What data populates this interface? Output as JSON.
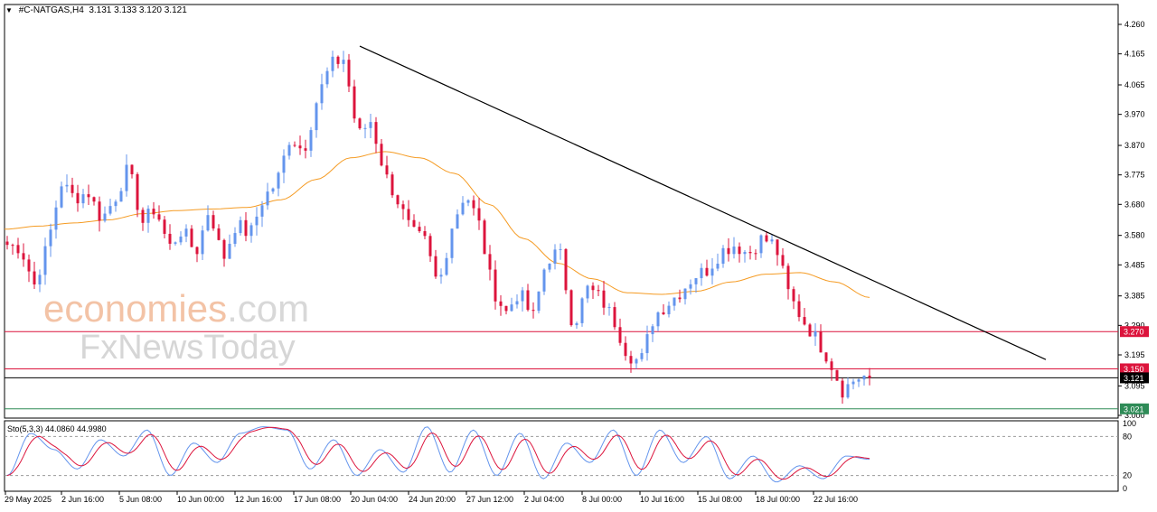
{
  "header": {
    "symbol": "#C-NATGAS,H4",
    "ohlc": "3.131 3.133 3.120 3.121"
  },
  "watermark": {
    "line1_main": "economies",
    "line1_suffix": ".com",
    "line2": "FxNewsToday"
  },
  "indicator": {
    "label": "Sto(5,3,3) 44.0860 44.9980",
    "levels": [
      80,
      20
    ],
    "axis_ticks": [
      "100",
      "80",
      "20",
      "0"
    ]
  },
  "price_axis": {
    "ticks": [
      "4.260",
      "4.165",
      "4.065",
      "3.970",
      "3.870",
      "3.775",
      "3.680",
      "3.580",
      "3.485",
      "3.385",
      "3.290",
      "3.195",
      "3.095",
      "3.000"
    ]
  },
  "hlines": [
    {
      "label": "3.270",
      "value": 3.27,
      "color": "#dc143c"
    },
    {
      "label": "3.150",
      "value": 3.15,
      "color": "#dc143c"
    },
    {
      "label": "3.121",
      "value": 3.121,
      "color": "#000000"
    },
    {
      "label": "3.021",
      "value": 3.021,
      "color": "#2e8b57"
    }
  ],
  "time_axis": [
    "29 May 2025",
    "2 Jun 16:00",
    "5 Jun 08:00",
    "10 Jun 00:00",
    "12 Jun 16:00",
    "17 Jun 08:00",
    "20 Jun 04:00",
    "24 Jun 20:00",
    "27 Jun 12:00",
    "2 Jul 04:00",
    "8 Jul 00:00",
    "10 Jul 16:00",
    "15 Jul 08:00",
    "18 Jul 00:00",
    "22 Jul 16:00"
  ],
  "colors": {
    "bull": "#6495ed",
    "bear": "#dc143c",
    "ma": "#f59b23",
    "trend": "#000000",
    "stoch_main": "#6495ed",
    "stoch_signal": "#dc143c"
  },
  "chart_data": {
    "type": "candlestick",
    "title": "#C-NATGAS,H4",
    "timeframe": "H4",
    "y_range": [
      3.0,
      4.26
    ],
    "anchors": [
      3.55,
      3.54,
      3.42,
      3.55,
      3.75,
      3.7,
      3.72,
      3.63,
      3.7,
      3.8,
      3.62,
      3.67,
      3.54,
      3.6,
      3.52,
      3.67,
      3.5,
      3.62,
      3.58,
      3.7,
      3.75,
      3.9,
      3.85,
      4.02,
      4.13,
      4.15,
      3.9,
      3.95,
      3.78,
      3.69,
      3.59,
      3.56,
      3.41,
      3.61,
      3.72,
      3.62,
      3.41,
      3.33,
      3.4,
      3.31,
      3.5,
      3.53,
      3.28,
      3.41,
      3.38,
      3.31,
      3.2,
      3.17,
      3.32,
      3.36,
      3.4,
      3.45,
      3.47,
      3.53,
      3.55,
      3.52,
      3.57,
      3.55,
      3.39,
      3.31,
      3.25,
      3.18,
      3.08,
      3.12,
      3.13
    ],
    "ma_anchors": [
      3.6,
      3.61,
      3.62,
      3.63,
      3.65,
      3.66,
      3.665,
      3.67,
      3.695,
      3.76,
      3.83,
      3.85,
      3.83,
      3.78,
      3.68,
      3.57,
      3.49,
      3.44,
      3.395,
      3.39,
      3.4,
      3.43,
      3.455,
      3.46,
      3.43,
      3.38
    ],
    "trendline": {
      "from": {
        "time": "18 Jun 2025",
        "price": 4.19
      },
      "to": {
        "time": "28 Jul 2025",
        "price": 3.18
      }
    },
    "stochastic_anchors": [
      20,
      85,
      60,
      30,
      75,
      50,
      90,
      20,
      70,
      40,
      85,
      95,
      90,
      30,
      75,
      20,
      60,
      25,
      95,
      25,
      90,
      20,
      85,
      15,
      70,
      40,
      90,
      20,
      90,
      40,
      80,
      15,
      50,
      10,
      35,
      15,
      50,
      45
    ]
  }
}
